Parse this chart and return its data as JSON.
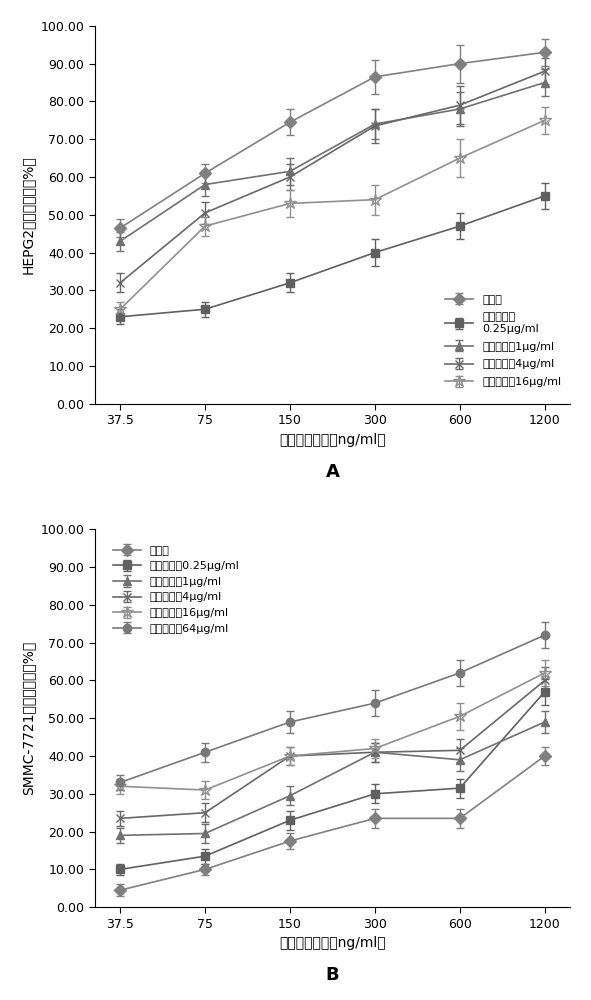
{
  "x_vals": [
    37.5,
    75,
    150,
    300,
    600,
    1200
  ],
  "x_labels": [
    "37.5",
    "75",
    "150",
    "300",
    "600",
    "1200"
  ],
  "xlabel": "甲氨蝶嘟浓度（ng/ml）",
  "panel_A": {
    "ylabel": "HEPG2细胞抑制率（%）",
    "ylim": [
      0,
      100
    ],
    "yticks": [
      0,
      10,
      20,
      30,
      40,
      50,
      60,
      70,
      80,
      90,
      100
    ],
    "yticklabels": [
      "0.00",
      "10.00",
      "20.00",
      "30.00",
      "40.00",
      "50.00",
      "60.00",
      "70.00",
      "80.00",
      "90.00",
      "100.00"
    ],
    "series": [
      {
        "label": "对照组",
        "values": [
          46.5,
          61.0,
          74.5,
          86.5,
          90.0,
          93.0
        ],
        "yerr": [
          2.5,
          2.5,
          3.5,
          4.5,
          5.0,
          3.5
        ],
        "marker": "D",
        "color": "#808080",
        "linestyle": "-"
      },
      {
        "label": "米氨平浓度\n0.25μg/ml",
        "values": [
          23.0,
          25.0,
          32.0,
          40.0,
          47.0,
          55.0
        ],
        "yerr": [
          2.0,
          2.0,
          2.5,
          3.5,
          3.5,
          3.5
        ],
        "marker": "s",
        "color": "#606060",
        "linestyle": "-"
      },
      {
        "label": "米氨平浓度1μg/ml",
        "values": [
          43.0,
          58.0,
          61.5,
          74.0,
          78.0,
          85.0
        ],
        "yerr": [
          2.5,
          3.0,
          3.5,
          4.0,
          4.5,
          3.5
        ],
        "marker": "^",
        "color": "#707070",
        "linestyle": "-"
      },
      {
        "label": "米氨平浓度4μg/ml",
        "values": [
          32.0,
          50.5,
          60.0,
          73.5,
          79.0,
          88.0
        ],
        "yerr": [
          2.5,
          3.0,
          3.5,
          4.5,
          5.0,
          3.5
        ],
        "marker": "x",
        "color": "#686868",
        "linestyle": "-"
      },
      {
        "label": "米氨平浓度16μg/ml",
        "values": [
          25.0,
          47.0,
          53.0,
          54.0,
          65.0,
          75.0
        ],
        "yerr": [
          2.0,
          2.5,
          3.5,
          4.0,
          5.0,
          3.5
        ],
        "marker": "*",
        "color": "#909090",
        "linestyle": "-"
      }
    ]
  },
  "panel_B": {
    "ylabel": "SMMC-7721细胞抑制率（%）",
    "ylim": [
      0,
      100
    ],
    "yticks": [
      0,
      10,
      20,
      30,
      40,
      50,
      60,
      70,
      80,
      90,
      100
    ],
    "yticklabels": [
      "0.00",
      "10.00",
      "20.00",
      "30.00",
      "40.00",
      "50.00",
      "60.00",
      "70.00",
      "80.00",
      "90.00",
      "100.00"
    ],
    "series": [
      {
        "label": "对照组",
        "values": [
          4.5,
          10.0,
          17.5,
          23.5,
          23.5,
          40.0
        ],
        "yerr": [
          1.5,
          1.5,
          2.0,
          2.5,
          2.5,
          2.5
        ],
        "marker": "D",
        "color": "#808080",
        "linestyle": "-"
      },
      {
        "label": "米氨平浓度0.25μg/ml",
        "values": [
          10.0,
          13.5,
          23.0,
          30.0,
          31.5,
          57.0
        ],
        "yerr": [
          1.5,
          2.0,
          2.5,
          2.5,
          2.5,
          3.5
        ],
        "marker": "s",
        "color": "#606060",
        "linestyle": "-"
      },
      {
        "label": "米氨平浓度1μg/ml",
        "values": [
          19.0,
          19.5,
          29.5,
          41.0,
          39.0,
          49.0
        ],
        "yerr": [
          2.0,
          2.5,
          2.5,
          2.5,
          3.0,
          3.0
        ],
        "marker": "^",
        "color": "#707070",
        "linestyle": "-"
      },
      {
        "label": "米氨平浓度4μg/ml",
        "values": [
          23.5,
          25.0,
          40.0,
          41.0,
          41.5,
          60.0
        ],
        "yerr": [
          2.0,
          2.5,
          2.5,
          2.5,
          3.0,
          3.5
        ],
        "marker": "x",
        "color": "#686868",
        "linestyle": "-"
      },
      {
        "label": "米氨平浓度16μg/ml",
        "values": [
          32.0,
          31.0,
          40.0,
          42.0,
          50.5,
          62.0
        ],
        "yerr": [
          2.0,
          2.5,
          2.5,
          2.5,
          3.5,
          3.5
        ],
        "marker": "*",
        "color": "#909090",
        "linestyle": "-"
      },
      {
        "label": "米氨平浓度64μg/ml",
        "values": [
          33.0,
          41.0,
          49.0,
          54.0,
          62.0,
          72.0
        ],
        "yerr": [
          2.0,
          2.5,
          3.0,
          3.5,
          3.5,
          3.5
        ],
        "marker": "o",
        "color": "#787878",
        "linestyle": "-"
      }
    ]
  },
  "label_A": "A",
  "label_B": "B",
  "background_color": "#ffffff"
}
